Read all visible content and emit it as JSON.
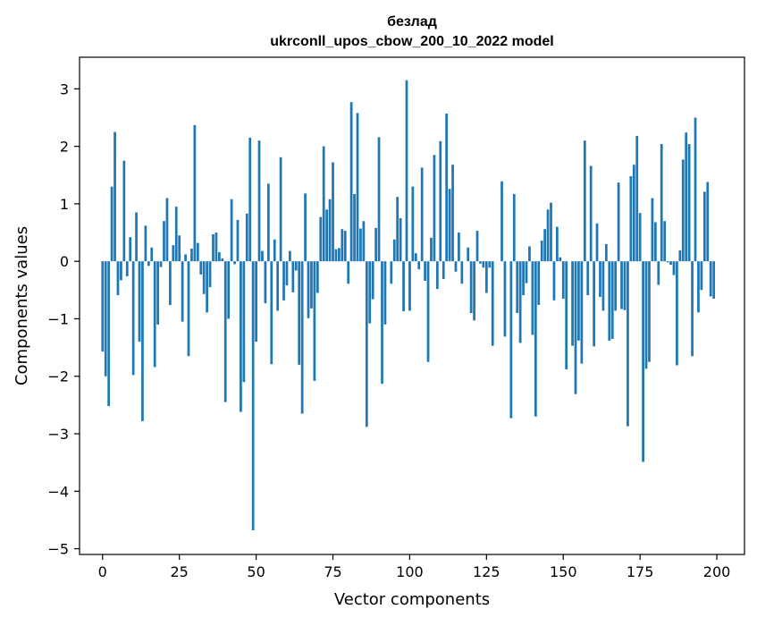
{
  "chart_data": {
    "type": "bar",
    "title": "безлад",
    "subtitle": "ukrconll_upos_cbow_200_10_2022 model",
    "xlabel": "Vector components",
    "ylabel": "Components values",
    "xlim": [
      -7.5,
      209
    ],
    "ylim": [
      -5.1,
      3.55
    ],
    "xticks": [
      0,
      25,
      50,
      75,
      100,
      125,
      150,
      175,
      200
    ],
    "xtick_labels": [
      "0",
      "25",
      "50",
      "75",
      "100",
      "125",
      "150",
      "175",
      "200"
    ],
    "yticks": [
      -5,
      -4,
      -3,
      -2,
      -1,
      0,
      1,
      2,
      3
    ],
    "ytick_labels": [
      "−5",
      "−4",
      "−3",
      "−2",
      "−1",
      "0",
      "1",
      "2",
      "3"
    ],
    "grid": false,
    "bar_color": "#1f77b4",
    "values": [
      -1.57,
      -2.0,
      -2.52,
      1.3,
      2.25,
      -0.59,
      -0.33,
      1.75,
      -0.26,
      0.42,
      -1.98,
      0.85,
      -1.4,
      -2.78,
      0.62,
      -0.08,
      0.24,
      -1.84,
      -1.1,
      -0.1,
      0.7,
      1.1,
      -0.76,
      0.28,
      0.95,
      0.45,
      -1.05,
      0.12,
      -1.65,
      0.22,
      2.37,
      0.32,
      -0.23,
      -0.57,
      -0.89,
      -0.45,
      0.47,
      0.5,
      0.16,
      0.05,
      -2.45,
      -1.0,
      1.08,
      -0.05,
      0.72,
      -2.62,
      -2.1,
      0.83,
      2.15,
      -4.68,
      -1.4,
      2.1,
      0.18,
      -0.73,
      1.35,
      -1.79,
      0.38,
      -0.86,
      1.81,
      -0.68,
      -0.42,
      0.18,
      -0.54,
      -0.16,
      -1.8,
      -2.65,
      1.18,
      -0.99,
      -0.82,
      -2.08,
      -0.55,
      0.77,
      2.0,
      0.9,
      1.08,
      1.72,
      0.21,
      0.23,
      0.56,
      0.53,
      -0.39,
      2.77,
      1.17,
      2.58,
      0.57,
      0.7,
      -2.88,
      -1.08,
      -0.66,
      0.58,
      2.16,
      -2.13,
      -1.1,
      0.0,
      -0.39,
      0.38,
      1.12,
      0.75,
      -0.87,
      3.15,
      -0.86,
      1.3,
      0.14,
      -0.14,
      1.63,
      -0.34,
      -1.75,
      0.41,
      1.85,
      -0.48,
      2.09,
      -0.31,
      2.57,
      1.26,
      1.68,
      -0.18,
      0.5,
      -0.39,
      0.0,
      0.24,
      -0.9,
      -1.03,
      0.53,
      -0.04,
      -0.11,
      -0.55,
      -0.11,
      -1.47,
      0.0,
      0.0,
      1.39,
      -1.31,
      0.0,
      -2.73,
      1.17,
      -0.9,
      -1.42,
      -0.59,
      -0.38,
      0.26,
      -1.28,
      -2.7,
      -0.76,
      0.36,
      0.56,
      0.9,
      1.02,
      -0.68,
      0.6,
      0.07,
      -0.65,
      -1.88,
      0.0,
      -1.47,
      -2.31,
      -1.38,
      -1.78,
      2.1,
      -0.59,
      1.66,
      -1.48,
      0.66,
      -0.62,
      -0.86,
      0.3,
      -1.38,
      -1.35,
      -0.86,
      1.37,
      -0.83,
      -0.85,
      -2.87,
      1.48,
      1.68,
      2.18,
      0.84,
      -3.49,
      -1.87,
      -1.75,
      1.1,
      0.68,
      -0.41,
      2.04,
      0.7,
      -0.02,
      -0.06,
      -0.24,
      -1.81,
      0.19,
      1.77,
      2.24,
      2.04,
      -1.65,
      2.5,
      -0.89,
      -0.5,
      1.21,
      1.38,
      -0.61,
      -0.65
    ]
  }
}
